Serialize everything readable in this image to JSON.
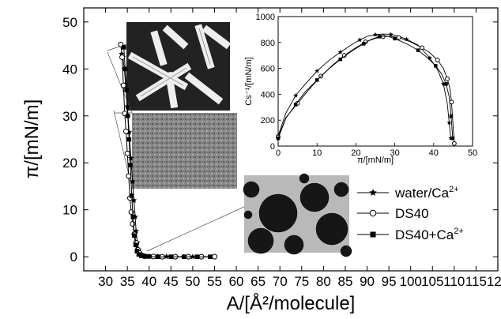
{
  "chart_data": [
    {
      "type": "line",
      "xlabel": "A/[Å²/molecule]",
      "ylabel": "π/[mN/m]",
      "xlim": [
        25,
        120
      ],
      "ylim": [
        -3,
        53
      ],
      "xticks": [
        "30",
        "35",
        "40",
        "45",
        "50",
        "55",
        "60",
        "65",
        "70",
        "75",
        "80",
        "85",
        "90",
        "95",
        "100",
        "105",
        "110",
        "115",
        "120"
      ],
      "yticks": [
        "0",
        "10",
        "20",
        "30",
        "40",
        "50"
      ],
      "legend_position": "right",
      "legend": [
        "water/Ca2+",
        "DS40",
        "DS40+Ca2+"
      ],
      "series": [
        {
          "name": "water/Ca2+",
          "marker": "star",
          "points": [
            [
              33.7,
              43.2
            ],
            [
              34.0,
              42.5
            ],
            [
              34.3,
              40.0
            ],
            [
              34.6,
              36.8
            ],
            [
              35.0,
              32.0
            ],
            [
              35.4,
              26.5
            ],
            [
              35.8,
              21.0
            ],
            [
              36.2,
              16.0
            ],
            [
              36.5,
              12.0
            ],
            [
              36.8,
              8.5
            ],
            [
              37.0,
              5.5
            ],
            [
              37.3,
              3.0
            ],
            [
              37.6,
              1.5
            ],
            [
              38.0,
              0.6
            ],
            [
              38.6,
              0.2
            ],
            [
              40,
              0.1
            ],
            [
              42,
              0.05
            ],
            [
              44,
              0.05
            ],
            [
              46,
              0
            ],
            [
              48,
              0
            ],
            [
              50,
              0
            ],
            [
              52,
              0
            ],
            [
              55,
              0
            ]
          ]
        },
        {
          "name": "DS40",
          "marker": "circle",
          "points": [
            [
              33.5,
              45.2
            ],
            [
              33.8,
              42.5
            ],
            [
              34.1,
              36.5
            ],
            [
              34.4,
              30.5
            ],
            [
              34.7,
              26.7
            ],
            [
              35.0,
              22.0
            ],
            [
              35.3,
              17.2
            ],
            [
              35.6,
              12.5
            ],
            [
              35.9,
              9.5
            ],
            [
              36.2,
              7.0
            ],
            [
              36.6,
              4.8
            ],
            [
              37.0,
              3.0
            ],
            [
              37.4,
              1.5
            ],
            [
              37.8,
              0.8
            ],
            [
              38.3,
              0.3
            ],
            [
              39,
              0.1
            ],
            [
              41,
              0.05
            ],
            [
              43,
              0
            ],
            [
              46,
              0
            ],
            [
              49,
              0
            ],
            [
              52,
              0
            ],
            [
              55,
              0
            ]
          ]
        },
        {
          "name": "DS40+Ca2+",
          "marker": "square",
          "points": [
            [
              34.2,
              44.6
            ],
            [
              34.5,
              40.0
            ],
            [
              34.8,
              35.5
            ],
            [
              35.1,
              30.0
            ],
            [
              35.4,
              25.0
            ],
            [
              35.7,
              19.5
            ],
            [
              36.0,
              13.0
            ],
            [
              36.3,
              8.5
            ],
            [
              36.6,
              4.5
            ],
            [
              36.9,
              2.5
            ],
            [
              37.2,
              1.2
            ],
            [
              37.6,
              0.5
            ],
            [
              38.2,
              0.2
            ],
            [
              39,
              0.1
            ],
            [
              40,
              0.05
            ],
            [
              42,
              0
            ],
            [
              45,
              0
            ],
            [
              48,
              0
            ],
            [
              51,
              0
            ],
            [
              54,
              0
            ]
          ]
        }
      ]
    },
    {
      "type": "line",
      "xlabel": "π/[mN/m]",
      "ylabel": "Cs⁻¹/[mN/m]",
      "xlim": [
        0,
        50
      ],
      "ylim": [
        0,
        1000
      ],
      "xticks": [
        "0",
        "10",
        "20",
        "30",
        "40",
        "50"
      ],
      "yticks": [
        "0",
        "200",
        "400",
        "600",
        "800",
        "1000"
      ],
      "series": [
        {
          "name": "water/Ca2+",
          "marker": "star",
          "points": [
            [
              0,
              80
            ],
            [
              2,
              255
            ],
            [
              4.5,
              390
            ],
            [
              7,
              480
            ],
            [
              10,
              580
            ],
            [
              13,
              660
            ],
            [
              16,
              725
            ],
            [
              19,
              785
            ],
            [
              21,
              820
            ],
            [
              23,
              848
            ],
            [
              25,
              860
            ],
            [
              27,
              865
            ],
            [
              29,
              862
            ],
            [
              31,
              850
            ],
            [
              33,
              825
            ],
            [
              36,
              780
            ],
            [
              39,
              680
            ],
            [
              41,
              590
            ],
            [
              42.5,
              480
            ],
            [
              43.5,
              330
            ],
            [
              44,
              180
            ],
            [
              44.4,
              60
            ]
          ]
        },
        {
          "name": "DS40",
          "marker": "circle",
          "points": [
            [
              0,
              70
            ],
            [
              2,
              220
            ],
            [
              5,
              330
            ],
            [
              8,
              440
            ],
            [
              11,
              540
            ],
            [
              14,
              625
            ],
            [
              17,
              700
            ],
            [
              20,
              760
            ],
            [
              22.5,
              805
            ],
            [
              25,
              832
            ],
            [
              27,
              845
            ],
            [
              29,
              848
            ],
            [
              31,
              838
            ],
            [
              34,
              805
            ],
            [
              37,
              760
            ],
            [
              39,
              720
            ],
            [
              41,
              665
            ],
            [
              42.5,
              600
            ],
            [
              43.5,
              520
            ],
            [
              44.2,
              440
            ],
            [
              44.6,
              340
            ],
            [
              45,
              150
            ],
            [
              45.3,
              20
            ]
          ]
        },
        {
          "name": "DS40+Ca2+",
          "marker": "square",
          "points": [
            [
              0,
              60
            ],
            [
              2,
              215
            ],
            [
              4.5,
              320
            ],
            [
              7,
              420
            ],
            [
              10,
              510
            ],
            [
              13,
              595
            ],
            [
              16,
              670
            ],
            [
              19,
              735
            ],
            [
              22,
              790
            ],
            [
              24,
              825
            ],
            [
              26,
              845
            ],
            [
              28,
              850
            ],
            [
              30,
              830
            ],
            [
              33,
              790
            ],
            [
              36,
              740
            ],
            [
              38.5,
              680
            ],
            [
              40.5,
              620
            ],
            [
              42,
              560
            ],
            [
              43.2,
              480
            ],
            [
              44,
              380
            ],
            [
              44.5,
              230
            ],
            [
              44.9,
              60
            ]
          ]
        }
      ]
    }
  ]
}
